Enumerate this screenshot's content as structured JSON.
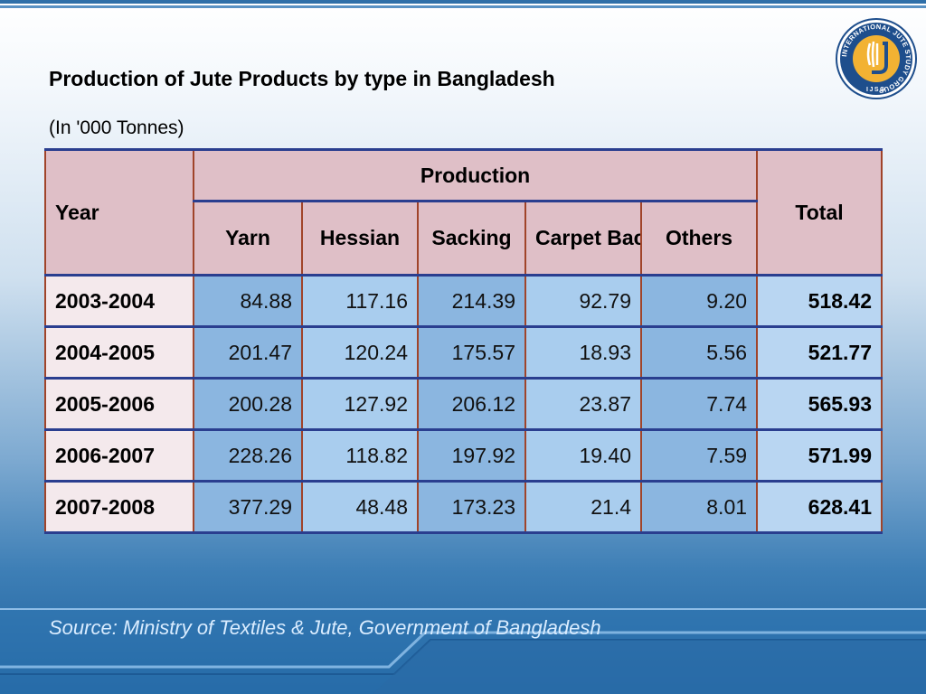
{
  "slide": {
    "title": "Production of Jute Products by type in Bangladesh",
    "subtitle": "(In '000 Tonnes)",
    "source": "Source: Ministry of Textiles & Jute, Government of Bangladesh"
  },
  "logo": {
    "ring_text": "INTERNATIONAL JUTE STUDY GROUP",
    "abbr": "IJSG",
    "icon": "jute-plant-logo-icon"
  },
  "table": {
    "year_header": "Year",
    "production_header": "Production",
    "total_header": "Total",
    "columns": [
      "Yarn",
      "Hessian",
      "Sacking",
      "Carpet Backing",
      "Others"
    ],
    "rows": [
      {
        "year": "2003-2004",
        "values": [
          "84.88",
          "117.16",
          "214.39",
          "92.79",
          "9.20"
        ],
        "total": "518.42"
      },
      {
        "year": "2004-2005",
        "values": [
          "201.47",
          "120.24",
          "175.57",
          "18.93",
          "5.56"
        ],
        "total": "521.77"
      },
      {
        "year": "2005-2006",
        "values": [
          "200.28",
          "127.92",
          "206.12",
          "23.87",
          "7.74"
        ],
        "total": "565.93"
      },
      {
        "year": "2006-2007",
        "values": [
          "228.26",
          "118.82",
          "197.92",
          "19.40",
          "7.59"
        ],
        "total": "571.99"
      },
      {
        "year": "2007-2008",
        "values": [
          "377.29",
          "48.48",
          "173.23",
          "21.4",
          "8.01"
        ],
        "total": "628.41"
      }
    ]
  },
  "colors": {
    "header_bg": "#dfbfc7",
    "year_cell_bg": "#f4e9ec",
    "value_cell_dark": "#8bb6e0",
    "value_cell_light": "#a9cdee",
    "border_vertical": "#a0442a",
    "border_horizontal": "#2a3e8f",
    "source_text": "#d9ecff"
  }
}
